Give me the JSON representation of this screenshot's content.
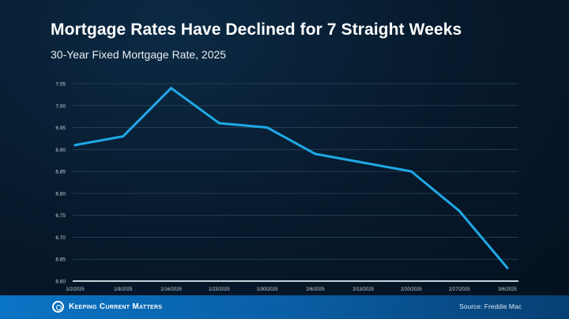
{
  "chart_data": {
    "type": "line",
    "title": "Mortgage Rates Have Declined for 7 Straight Weeks",
    "subtitle": "30-Year Fixed Mortgage Rate, 2025",
    "categories": [
      "1/2/2025",
      "1/9/2025",
      "1/16/2025",
      "1/23/2025",
      "1/30/2025",
      "2/6/2025",
      "2/13/2025",
      "2/20/2025",
      "2/27/2025",
      "3/6/2025"
    ],
    "series": [
      {
        "values": [
          6.91,
          6.93,
          7.04,
          6.96,
          6.95,
          6.89,
          6.87,
          6.85,
          6.76,
          6.63
        ]
      }
    ],
    "ylim": [
      6.6,
      7.05
    ],
    "yticks": [
      "6.60",
      "6.65",
      "6.70",
      "6.75",
      "6.80",
      "6.85",
      "6.90",
      "6.95",
      "7.00",
      "7.05"
    ],
    "grid": true,
    "line_color": "#1fa9e6"
  },
  "footer": {
    "logo_text": "Keeping Current Matters",
    "source": "Source: Freddie Mac"
  }
}
